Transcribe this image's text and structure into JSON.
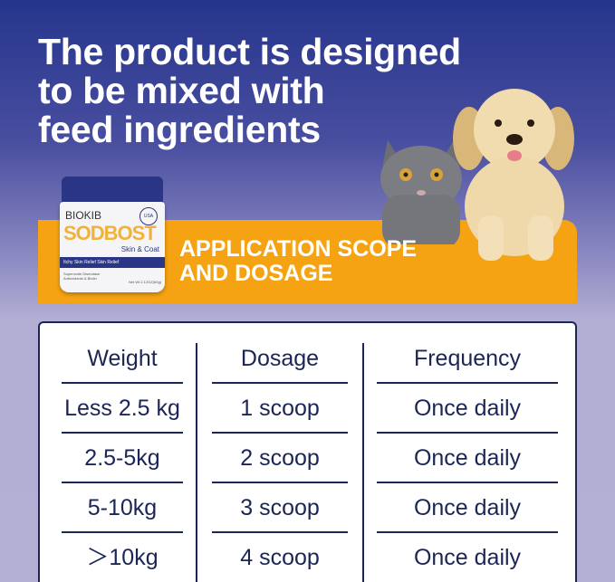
{
  "headline": [
    "The product is designed",
    "to be mixed with",
    "feed ingredients"
  ],
  "banner": {
    "line1": "APPLICATION SCOPE",
    "line2": "AND DOSAGE",
    "color": "#f5a312"
  },
  "product": {
    "brand": "BIOKIB",
    "name": "SODBOST",
    "subtitle": "Skin & Coat",
    "strip": "Itchy Skin Relief Skin Relief",
    "ingredients": "Superoxide Dismutase Antioxidants & Biotin",
    "net_weight": "Net Wt 2.12OZ(60g)",
    "badge": "USA"
  },
  "table": {
    "headers": [
      "Weight",
      "Dosage",
      "Frequency"
    ],
    "rows": [
      [
        "Less 2.5 kg",
        "1 scoop",
        "Once daily"
      ],
      [
        "2.5-5kg",
        "2 scoop",
        "Once daily"
      ],
      [
        "5-10kg",
        "3 scoop",
        "Once daily"
      ],
      [
        "＞10kg",
        "4 scoop",
        "Once daily"
      ]
    ]
  },
  "colors": {
    "navy": "#1b2556",
    "orange": "#f5a312",
    "top_blue": "#25358c"
  }
}
